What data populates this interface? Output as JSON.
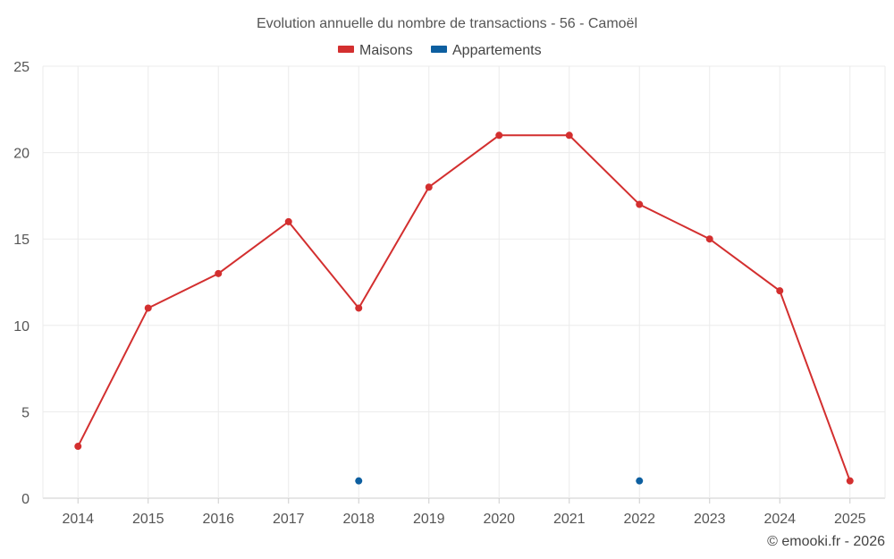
{
  "chart_data": {
    "type": "line",
    "title": "Evolution annuelle du nombre de transactions - 56 - Camoël",
    "categories": [
      "2014",
      "2015",
      "2016",
      "2017",
      "2018",
      "2019",
      "2020",
      "2021",
      "2022",
      "2023",
      "2024",
      "2025"
    ],
    "series": [
      {
        "name": "Maisons",
        "color": "#d32f2f",
        "values": [
          3,
          11,
          13,
          16,
          11,
          18,
          21,
          21,
          17,
          15,
          12,
          1
        ]
      },
      {
        "name": "Appartements",
        "color": "#0d5fa0",
        "values": [
          null,
          null,
          null,
          null,
          1,
          null,
          null,
          null,
          1,
          null,
          null,
          null
        ]
      }
    ],
    "ylim": [
      0,
      25
    ],
    "yticks": [
      "0",
      "5",
      "10",
      "15",
      "20",
      "25"
    ],
    "grid": true,
    "legend_position": "top-center",
    "xlabel": "",
    "ylabel": ""
  },
  "credit": "© emooki.fr - 2026"
}
